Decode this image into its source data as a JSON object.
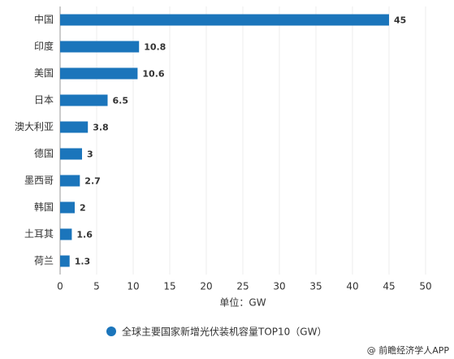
{
  "chart_data": {
    "type": "bar",
    "orientation": "horizontal",
    "categories": [
      "中国",
      "印度",
      "美国",
      "日本",
      "澳大利亚",
      "德国",
      "墨西哥",
      "韩国",
      "土耳其",
      "荷兰"
    ],
    "series": [
      {
        "name": "全球主要国家新增光伏装机容量TOP10（GW）",
        "color": "#1b75bb",
        "values": [
          45,
          10.8,
          10.6,
          6.5,
          3.8,
          3,
          2.7,
          2,
          1.6,
          1.3
        ]
      }
    ],
    "x_label": "单位：GW",
    "xlim": [
      0,
      50
    ],
    "xticks": [
      0,
      5,
      10,
      15,
      20,
      25,
      30,
      35,
      40,
      45,
      50
    ],
    "grid": true,
    "credit": "@ 前瞻经济学人APP"
  }
}
